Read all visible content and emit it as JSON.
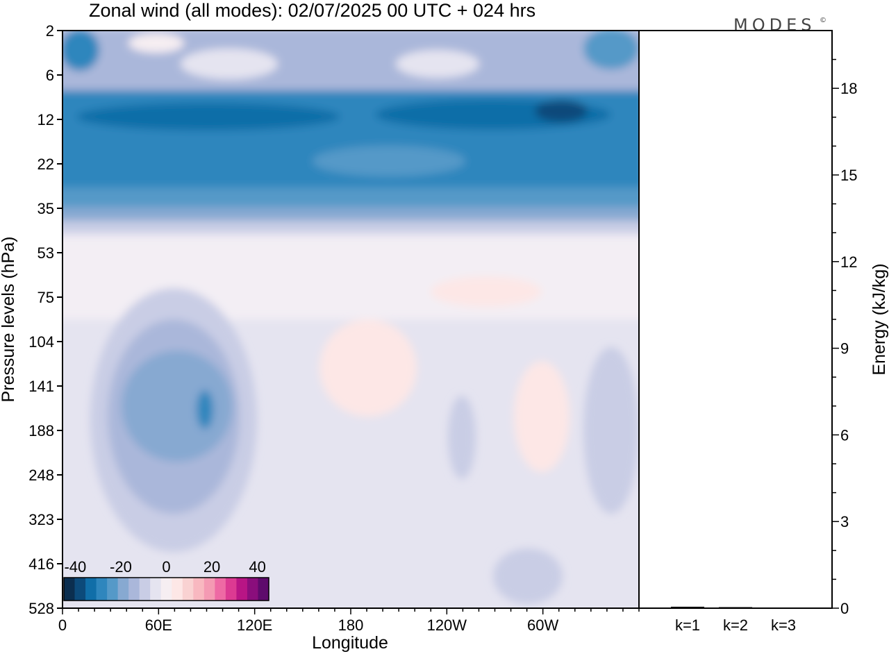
{
  "chart_data": [
    {
      "type": "heatmap",
      "title": "Zonal wind (all modes):  02/07/2025  00 UTC  + 024 hrs",
      "xlabel": "Longitude",
      "ylabel": "Pressure levels (hPa)",
      "x_ticks": [
        "0",
        "60E",
        "120E",
        "180",
        "120W",
        "60W"
      ],
      "y_levels": [
        "2",
        "6",
        "12",
        "22",
        "35",
        "53",
        "75",
        "104",
        "141",
        "188",
        "248",
        "323",
        "416",
        "528"
      ],
      "colorbar": {
        "ticks": [
          "-40",
          "-20",
          "0",
          "20",
          "40"
        ],
        "range": [
          -45,
          45
        ],
        "step": 5,
        "colors": [
          "#0b2e4f",
          "#0c4a7a",
          "#106ea8",
          "#2f86bd",
          "#5599c8",
          "#87a9d1",
          "#aab7da",
          "#c9cde5",
          "#e5e4f0",
          "#f6eef2",
          "#fde7e6",
          "#f9d2d2",
          "#f8b8c0",
          "#f49ab3",
          "#ee6aa4",
          "#dc3a92",
          "#b81585",
          "#8a0e7c",
          "#5e0b6c"
        ]
      },
      "bands": [
        {
          "levels": [
            "2",
            "6"
          ],
          "value_range": [
            -35,
            5
          ],
          "note": "mixed"
        },
        {
          "levels": [
            "12",
            "22"
          ],
          "value_range": [
            -40,
            -20
          ]
        },
        {
          "levels": [
            "35"
          ],
          "value_range": [
            -25,
            -10
          ]
        },
        {
          "levels": [
            "53",
            "75"
          ],
          "value_range": [
            -5,
            5
          ]
        },
        {
          "levels": [
            "104",
            "141",
            "188",
            "248",
            "323",
            "416",
            "528"
          ],
          "value_range": [
            -25,
            10
          ]
        }
      ]
    },
    {
      "type": "bar",
      "ylabel": "Energy (kJ/kg)",
      "categories": [
        "k=1",
        "k=2",
        "k=3"
      ],
      "values": [
        0.05,
        0.03,
        0.0
      ],
      "ylim": [
        0,
        20
      ],
      "y_ticks": [
        "0",
        "3",
        "6",
        "9",
        "12",
        "15",
        "18"
      ]
    }
  ],
  "logo": {
    "text": "MODES",
    "mark": "©"
  }
}
